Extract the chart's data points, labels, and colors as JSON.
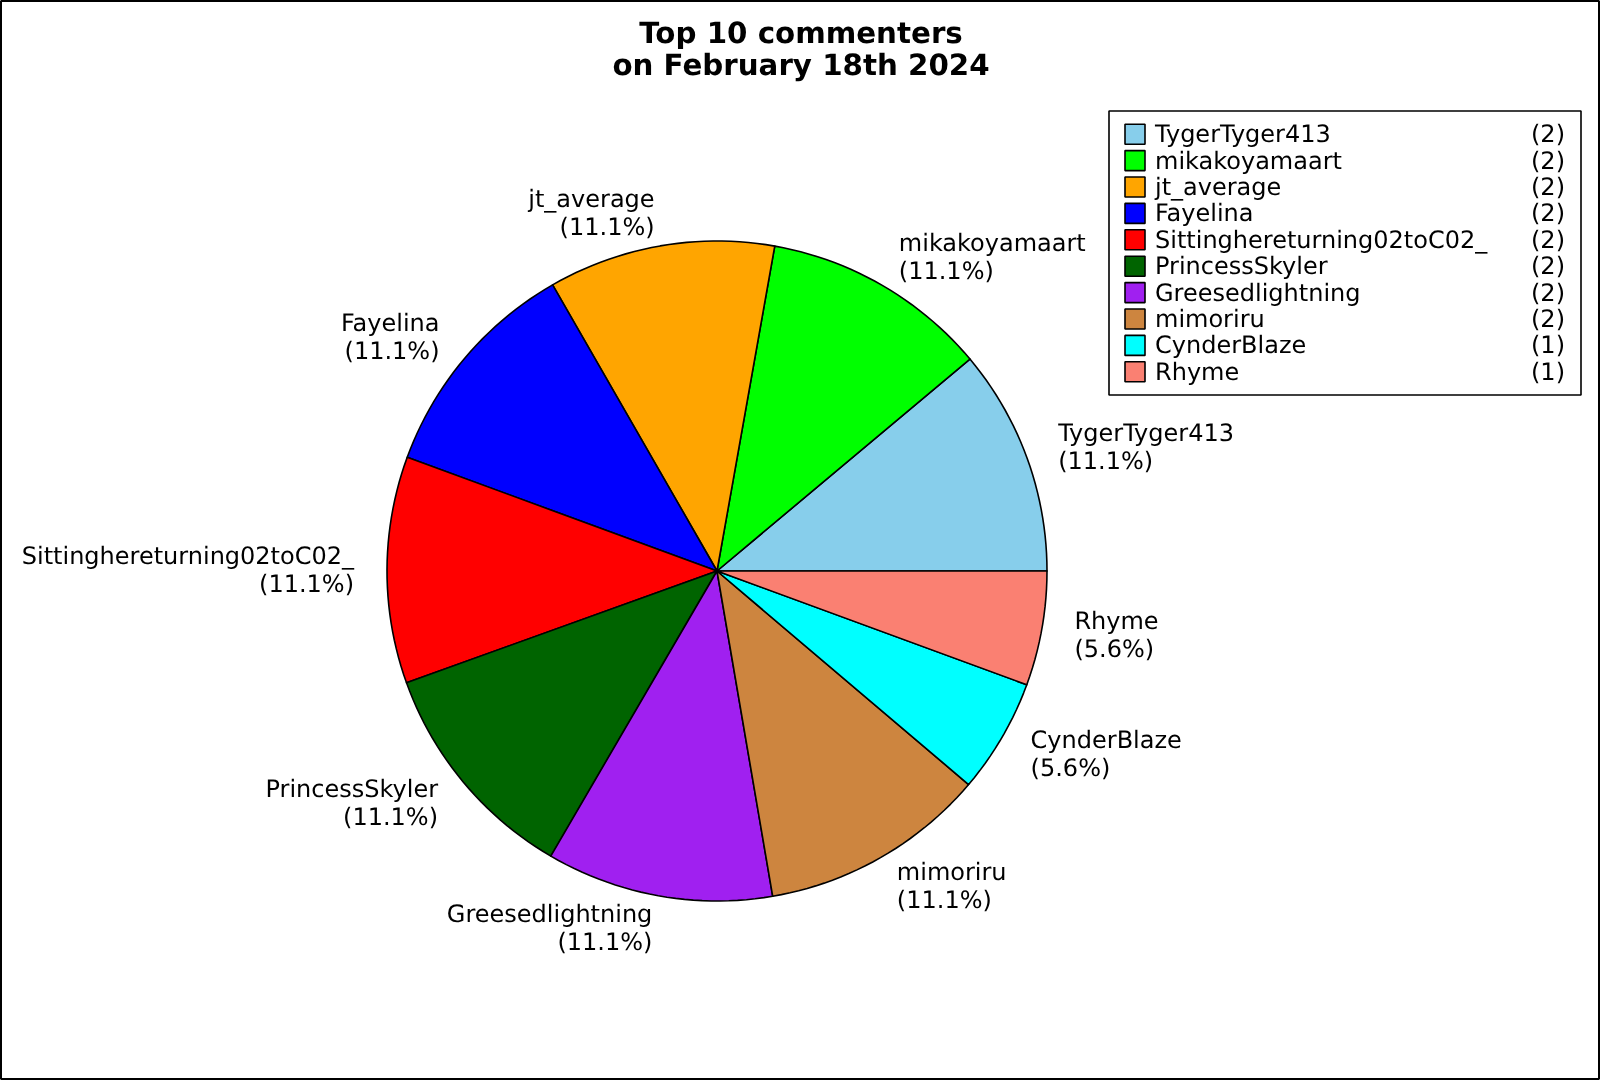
{
  "chart_data": {
    "type": "pie",
    "title": "Top 10 commenters\non February 18th 2024",
    "categories": [
      "TygerTyger413",
      "mikakoyamaart",
      "jt_average",
      "Fayelina",
      "Sittinghereturning02toC02_",
      "PrincessSkyler",
      "Greesedlightning",
      "mimoriru",
      "CynderBlaze",
      "Rhyme"
    ],
    "values": [
      11.1,
      11.1,
      11.1,
      11.1,
      11.1,
      11.1,
      11.1,
      11.1,
      5.6,
      5.6
    ],
    "annotations": [
      "(2)",
      "(2)",
      "(2)",
      "(2)",
      "(2)",
      "(2)",
      "(2)",
      "(2)",
      "(1)",
      "(1)"
    ],
    "value_labels": [
      "(11.1%)",
      "(11.1%)",
      "(11.1%)",
      "(11.1%)",
      "(11.1%)",
      "(11.1%)",
      "(11.1%)",
      "(11.1%)",
      "(5.6%)",
      "(5.6%)"
    ],
    "colors": [
      "#87ceeb",
      "#00ff00",
      "#ffa500",
      "#0000ff",
      "#ff0000",
      "#006400",
      "#a020f0",
      "#cd853f",
      "#00ffff",
      "#fa8072"
    ],
    "legend": "top right"
  }
}
